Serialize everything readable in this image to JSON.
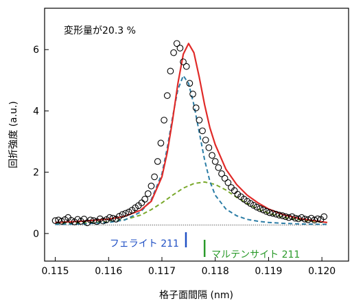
{
  "chart_data": {
    "type": "line",
    "xlabel": "格子面間隔 (nm)",
    "ylabel": "回折強度 (a.u.)",
    "xlim": [
      0.1148,
      0.1205
    ],
    "ylim": [
      -0.9,
      7.35
    ],
    "xticks": [
      0.115,
      0.116,
      0.117,
      0.118,
      0.119,
      0.12
    ],
    "xtick_labels": [
      "0.115",
      "0.116",
      "0.117",
      "0.118",
      "0.119",
      "0.120"
    ],
    "yticks": [
      0,
      2,
      4,
      6
    ],
    "ytick_labels": [
      "0",
      "2",
      "4",
      "6"
    ],
    "annotation": "変形量が20.3 %",
    "grid": false,
    "baseline": 0.28,
    "series": [
      {
        "kind": "observed",
        "style": "open-circle",
        "color": "#000000",
        "x": [
          0.115,
          0.11506,
          0.11512,
          0.11518,
          0.11524,
          0.1153,
          0.11536,
          0.11542,
          0.11548,
          0.11554,
          0.1156,
          0.11566,
          0.11572,
          0.11578,
          0.11584,
          0.1159,
          0.11596,
          0.11602,
          0.11608,
          0.11614,
          0.1162,
          0.11626,
          0.11632,
          0.11638,
          0.11644,
          0.1165,
          0.11656,
          0.11662,
          0.11668,
          0.11674,
          0.1168,
          0.11686,
          0.11692,
          0.11698,
          0.11704,
          0.1171,
          0.11716,
          0.11722,
          0.11728,
          0.11734,
          0.1174,
          0.11746,
          0.11752,
          0.11758,
          0.11764,
          0.1177,
          0.11776,
          0.11782,
          0.11788,
          0.11794,
          0.118,
          0.11806,
          0.11812,
          0.11818,
          0.11824,
          0.1183,
          0.11836,
          0.11842,
          0.11848,
          0.11854,
          0.1186,
          0.11866,
          0.11872,
          0.11878,
          0.11884,
          0.1189,
          0.11896,
          0.11902,
          0.11908,
          0.11914,
          0.1192,
          0.11926,
          0.11932,
          0.11938,
          0.11944,
          0.1195,
          0.11956,
          0.11962,
          0.11968,
          0.11974,
          0.1198,
          0.11986,
          0.11992,
          0.11998,
          0.12004
        ],
        "y": [
          0.42,
          0.44,
          0.4,
          0.45,
          0.52,
          0.43,
          0.38,
          0.46,
          0.4,
          0.47,
          0.35,
          0.44,
          0.42,
          0.39,
          0.48,
          0.41,
          0.45,
          0.52,
          0.5,
          0.47,
          0.56,
          0.62,
          0.66,
          0.7,
          0.76,
          0.84,
          0.91,
          1.0,
          1.12,
          1.3,
          1.55,
          1.85,
          2.35,
          2.95,
          3.7,
          4.5,
          5.3,
          5.9,
          6.2,
          6.05,
          5.6,
          5.45,
          4.9,
          4.55,
          4.1,
          3.7,
          3.35,
          3.05,
          2.8,
          2.55,
          2.35,
          2.15,
          1.95,
          1.8,
          1.66,
          1.5,
          1.4,
          1.28,
          1.2,
          1.12,
          1.05,
          0.98,
          0.92,
          0.86,
          0.81,
          0.77,
          0.72,
          0.68,
          0.66,
          0.63,
          0.6,
          0.58,
          0.55,
          0.52,
          0.55,
          0.5,
          0.48,
          0.52,
          0.47,
          0.45,
          0.5,
          0.44,
          0.48,
          0.46,
          0.55
        ]
      },
      {
        "kind": "fit",
        "style": "solid",
        "color": "#e02a28",
        "x": [
          0.115,
          0.1155,
          0.116,
          0.1163,
          0.1166,
          0.1168,
          0.117,
          0.1171,
          0.1172,
          0.1173,
          0.1174,
          0.1175,
          0.1176,
          0.1177,
          0.1178,
          0.1179,
          0.118,
          0.1182,
          0.1184,
          0.1186,
          0.1188,
          0.119,
          0.1193,
          0.1196,
          0.12,
          0.1201
        ],
        "y": [
          0.36,
          0.4,
          0.47,
          0.56,
          0.76,
          1.05,
          1.85,
          2.65,
          3.7,
          4.9,
          5.85,
          6.2,
          5.9,
          5.1,
          4.2,
          3.45,
          2.9,
          2.1,
          1.6,
          1.25,
          1.0,
          0.8,
          0.6,
          0.48,
          0.38,
          0.36
        ]
      },
      {
        "kind": "component",
        "style": "dashed",
        "color": "#2a7ca5",
        "x": [
          0.115,
          0.1155,
          0.116,
          0.1163,
          0.1166,
          0.1168,
          0.117,
          0.1171,
          0.1172,
          0.1173,
          0.1174,
          0.1175,
          0.1176,
          0.1177,
          0.1178,
          0.1179,
          0.118,
          0.1182,
          0.1184,
          0.1186,
          0.1188,
          0.119,
          0.1193,
          0.1196,
          0.12,
          0.1201
        ],
        "y": [
          0.3,
          0.31,
          0.36,
          0.44,
          0.7,
          1.1,
          1.95,
          2.8,
          3.8,
          4.7,
          5.15,
          4.9,
          4.2,
          3.3,
          2.4,
          1.7,
          1.25,
          0.8,
          0.58,
          0.46,
          0.4,
          0.36,
          0.33,
          0.31,
          0.3,
          0.3
        ]
      },
      {
        "kind": "component",
        "style": "dashed",
        "color": "#79a82a",
        "x": [
          0.115,
          0.1155,
          0.116,
          0.1163,
          0.1166,
          0.1168,
          0.117,
          0.1172,
          0.1174,
          0.1176,
          0.1178,
          0.118,
          0.1182,
          0.1184,
          0.1186,
          0.1188,
          0.119,
          0.1193,
          0.1196,
          0.12,
          0.1201
        ],
        "y": [
          0.33,
          0.34,
          0.38,
          0.45,
          0.6,
          0.78,
          1.0,
          1.25,
          1.48,
          1.63,
          1.68,
          1.6,
          1.42,
          1.18,
          0.98,
          0.8,
          0.66,
          0.52,
          0.44,
          0.37,
          0.36
        ]
      }
    ],
    "markers": [
      {
        "label": "フェライト 211",
        "x": 0.11745,
        "color": "#1f4fc4"
      },
      {
        "label": "マルテンサイト 211",
        "x": 0.1178,
        "color": "#2a9a2a"
      }
    ]
  }
}
